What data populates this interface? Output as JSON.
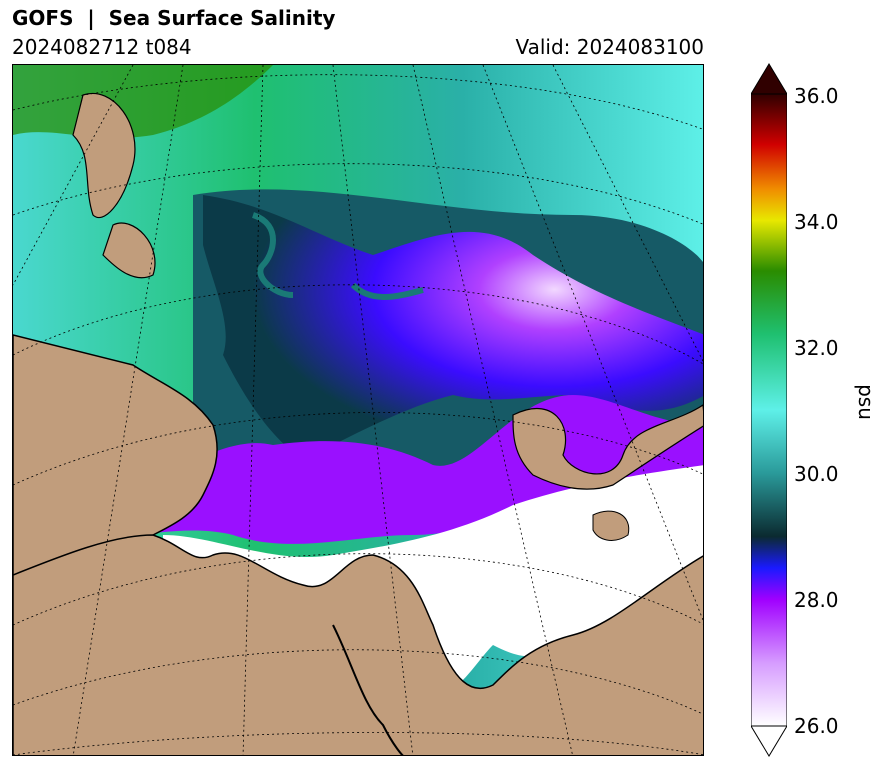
{
  "header": {
    "title": "GOFS  |  Sea Surface Salinity",
    "run_label": "2024082712 t084",
    "valid_label": "Valid: 2024083100"
  },
  "colorbar": {
    "label": "psu",
    "min": 26.0,
    "max": 36.0,
    "extend": "both",
    "ticks": [
      "26.0",
      "28.0",
      "30.0",
      "32.0",
      "34.0",
      "36.0"
    ],
    "colors": {
      "land": "#c19d7c",
      "ice_fresh": "#ffffff",
      "low": "#a000ff",
      "mid_fresh": "#1a1aff",
      "dark_teal": "#0b3a48",
      "teal": "#2a9a9a",
      "aqua": "#5ef0e8",
      "green": "#1fc070",
      "dark_green": "#2a8c00",
      "yellow": "#e8e800",
      "orange": "#f08c00",
      "red": "#d00000",
      "dark_red": "#300000"
    }
  }
}
